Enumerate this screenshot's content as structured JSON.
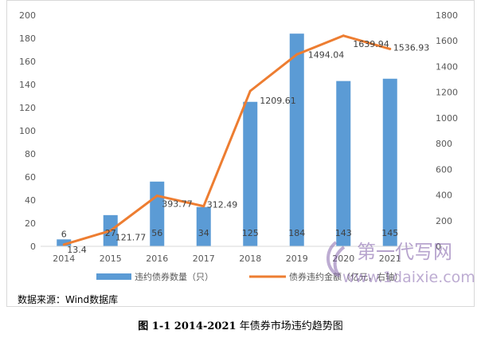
{
  "chart_data": {
    "type": "bar+line",
    "categories": [
      "2014",
      "2015",
      "2016",
      "2017",
      "2018",
      "2019",
      "2020",
      "2021"
    ],
    "series": [
      {
        "name": "违约债券数量（只）",
        "type": "bar",
        "axis": "left",
        "color": "#5b9bd5",
        "values": [
          6,
          27,
          56,
          34,
          125,
          184,
          143,
          145
        ],
        "labels": [
          "6",
          "27",
          "56",
          "34",
          "125",
          "184",
          "143",
          "145"
        ]
      },
      {
        "name": "债券违约金额（亿元，右轴）",
        "type": "line",
        "axis": "right",
        "color": "#ed7d31",
        "values": [
          13.4,
          121.77,
          393.77,
          312.49,
          1209.61,
          1494.04,
          1639.94,
          1536.93
        ],
        "labels": [
          "13.4",
          "121.77",
          "393.77",
          "312.49",
          "1209.61",
          "1494.04",
          "1639.94",
          "1536.93"
        ]
      }
    ],
    "y_left": {
      "min": 0,
      "max": 200,
      "ticks": [
        0,
        20,
        40,
        60,
        80,
        100,
        120,
        140,
        160,
        180,
        200
      ]
    },
    "y_right": {
      "min": 0,
      "max": 1800,
      "ticks": [
        0,
        200,
        400,
        600,
        800,
        1000,
        1200,
        1400,
        1600,
        1800
      ]
    },
    "grid": false,
    "legend_position": "bottom"
  },
  "source_note": "数据来源：Wind数据库",
  "caption": {
    "number": "图 1-1 2014-2021",
    "text": "年债券市场违约趋势图"
  },
  "watermark": {
    "brand": "第一代写网",
    "url": "www.1daixie.com"
  }
}
